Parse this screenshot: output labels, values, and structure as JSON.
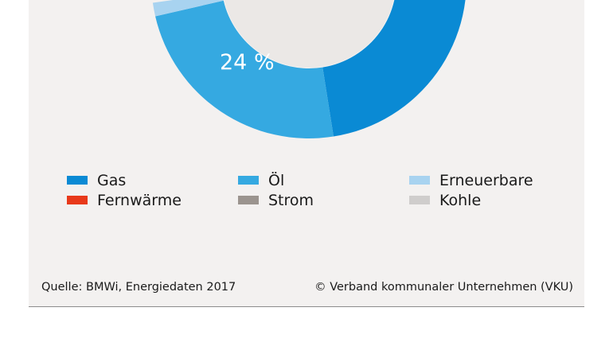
{
  "chart_data": {
    "type": "pie",
    "style": "donut",
    "visible_slice_labels": [
      {
        "category": "Öl",
        "label": "24 %"
      }
    ],
    "categories": [
      "Gas",
      "Öl",
      "Erneuerbare",
      "Fernwärme",
      "Strom",
      "Kohle"
    ],
    "values": [
      null,
      24,
      null,
      null,
      null,
      null
    ],
    "colors": [
      "#0a8ad4",
      "#35a9e1",
      "#a8d3f0",
      "#e8391a",
      "#9b948f",
      "#cfcdcc"
    ],
    "legend_position": "bottom"
  },
  "legend": [
    {
      "label": "Gas",
      "color": "#0a8ad4"
    },
    {
      "label": "Öl",
      "color": "#35a9e1"
    },
    {
      "label": "Erneuerbare",
      "color": "#a8d3f0"
    },
    {
      "label": "Fernwärme",
      "color": "#e8391a"
    },
    {
      "label": "Strom",
      "color": "#9b948f"
    },
    {
      "label": "Kohle",
      "color": "#cfcdcc"
    }
  ],
  "footer": {
    "source": "Quelle: BMWi, Energiedaten 2017",
    "copyright": "© Verband kommunaler Unternehmen (VKU)"
  },
  "colors": {
    "panel_bg": "#f3f1f0",
    "hole": "#ebe8e6"
  }
}
